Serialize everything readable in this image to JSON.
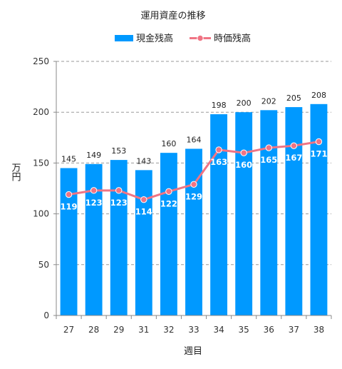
{
  "chart_data": {
    "type": "bar",
    "title": "運用資産の推移",
    "xlabel": "週目",
    "ylabel": "万円",
    "ylim": [
      0,
      250
    ],
    "yticks": [
      0,
      50,
      100,
      150,
      200,
      250
    ],
    "grid": true,
    "legend_position": "top",
    "categories": [
      "27",
      "28",
      "29",
      "31",
      "32",
      "33",
      "34",
      "35",
      "36",
      "37",
      "38"
    ],
    "series": [
      {
        "name": "現金残高",
        "type": "bar",
        "color": "#0099ff",
        "values": [
          145,
          149,
          153,
          143,
          160,
          164,
          198,
          200,
          202,
          205,
          208
        ],
        "labels": [
          "145",
          "149",
          "153",
          "143",
          "160",
          "164",
          "198",
          "200",
          "202",
          "205",
          "208"
        ]
      },
      {
        "name": "時価残高",
        "type": "line",
        "color": "#f07484",
        "values": [
          119,
          123,
          123,
          114,
          122,
          129,
          163,
          160,
          165,
          167,
          171
        ],
        "labels": [
          "119",
          "123",
          "123",
          "114",
          "122",
          "129",
          "163",
          "160",
          "165",
          "167",
          "171"
        ]
      }
    ]
  }
}
